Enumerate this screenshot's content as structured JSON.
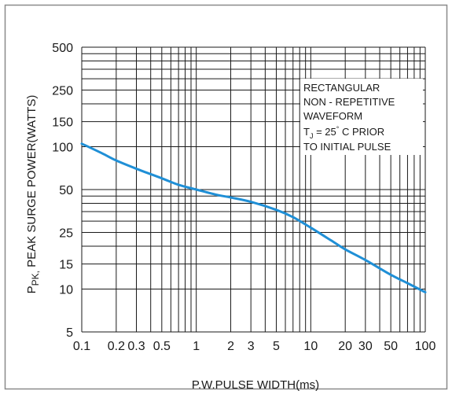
{
  "colors": {
    "frame_border": "#8a8a8a",
    "grid": "#1a1a1a",
    "curve": "#1f8fd6",
    "background": "#ffffff",
    "annotation_bg": "#ffffff"
  },
  "chart_data": {
    "type": "line",
    "title": "",
    "xlabel": "P.W.PULSE WIDTH(ms)",
    "ylabel_parts": {
      "p": "P",
      "sub": "PK,",
      "rest": " PEAK SURGE POWER(WATTS)"
    },
    "x_scale": "log",
    "y_scale": "log",
    "xlim": [
      0.1,
      100
    ],
    "ylim": [
      5,
      500
    ],
    "grid": true,
    "legend": "none",
    "x_tick_labels": [
      {
        "value": 0.1,
        "label": "0.1"
      },
      {
        "value": 0.2,
        "label": "0.2"
      },
      {
        "value": 0.3,
        "label": "0.3"
      },
      {
        "value": 0.5,
        "label": "0.5"
      },
      {
        "value": 1,
        "label": "1"
      },
      {
        "value": 2,
        "label": "2"
      },
      {
        "value": 3,
        "label": "3"
      },
      {
        "value": 5,
        "label": "5"
      },
      {
        "value": 10,
        "label": "10"
      },
      {
        "value": 20,
        "label": "20"
      },
      {
        "value": 30,
        "label": "30"
      },
      {
        "value": 50,
        "label": "50"
      },
      {
        "value": 100,
        "label": "100"
      }
    ],
    "y_tick_labels": [
      {
        "value": 5,
        "label": "5"
      },
      {
        "value": 10,
        "label": "10"
      },
      {
        "value": 15,
        "label": "15"
      },
      {
        "value": 25,
        "label": "25"
      },
      {
        "value": 50,
        "label": "50"
      },
      {
        "value": 100,
        "label": "100"
      },
      {
        "value": 150,
        "label": "150"
      },
      {
        "value": 250,
        "label": "250"
      },
      {
        "value": 500,
        "label": "500"
      }
    ],
    "x_grid_values": [
      0.1,
      0.2,
      0.3,
      0.4,
      0.5,
      0.6,
      0.7,
      0.8,
      0.9,
      1,
      2,
      3,
      4,
      5,
      6,
      7,
      8,
      9,
      10,
      20,
      30,
      40,
      50,
      60,
      70,
      80,
      90,
      100
    ],
    "y_grid_values": [
      5,
      10,
      15,
      20,
      25,
      30,
      35,
      40,
      45,
      50,
      100,
      150,
      200,
      250,
      300,
      350,
      400,
      450,
      500
    ],
    "series": [
      {
        "x": [
          0.1,
          0.15,
          0.2,
          0.3,
          0.5,
          0.7,
          1,
          1.5,
          2,
          3,
          5,
          7,
          10,
          15,
          20,
          30,
          50,
          70,
          100
        ],
        "y": [
          105,
          90,
          80,
          70,
          60,
          54,
          50,
          46,
          44,
          41,
          36,
          32,
          27,
          22,
          19,
          16,
          12.6,
          11,
          9.5
        ]
      }
    ],
    "annotation": {
      "lines": [
        {
          "text": "RECTANGULAR"
        },
        {
          "text": "NON - REPETITIVE"
        },
        {
          "text": "WAVEFORM"
        },
        {
          "t": "T",
          "sub": "J",
          "rest1": " = 25",
          "sup": "°",
          "rest2": " C PRIOR"
        },
        {
          "text": "TO INITIAL PULSE"
        }
      ]
    }
  }
}
